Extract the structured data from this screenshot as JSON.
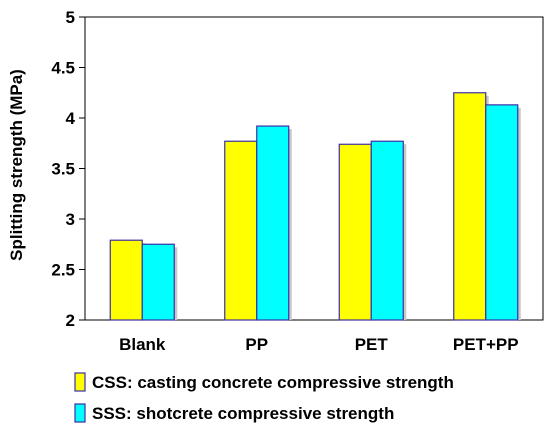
{
  "chart_data": {
    "type": "bar",
    "categories": [
      "Blank",
      "PP",
      "PET",
      "PET+PP"
    ],
    "series": [
      {
        "name": "CSS: casting concrete compressive strength",
        "values": [
          2.79,
          3.77,
          3.74,
          4.25
        ],
        "color": "#ffff00"
      },
      {
        "name": "SSS: shotcrete compressive strength",
        "values": [
          2.75,
          3.92,
          3.77,
          4.13
        ],
        "color": "#00ffff"
      }
    ],
    "ylabel": "Splitting strength (MPa)",
    "xlabel": "",
    "ylim": [
      2,
      5
    ],
    "yticks": [
      "2",
      "2.5",
      "3",
      "3.5",
      "4",
      "4.5",
      "5"
    ],
    "bar_border_color": "#3b2fa8",
    "grid": false,
    "legend_position": "bottom"
  }
}
